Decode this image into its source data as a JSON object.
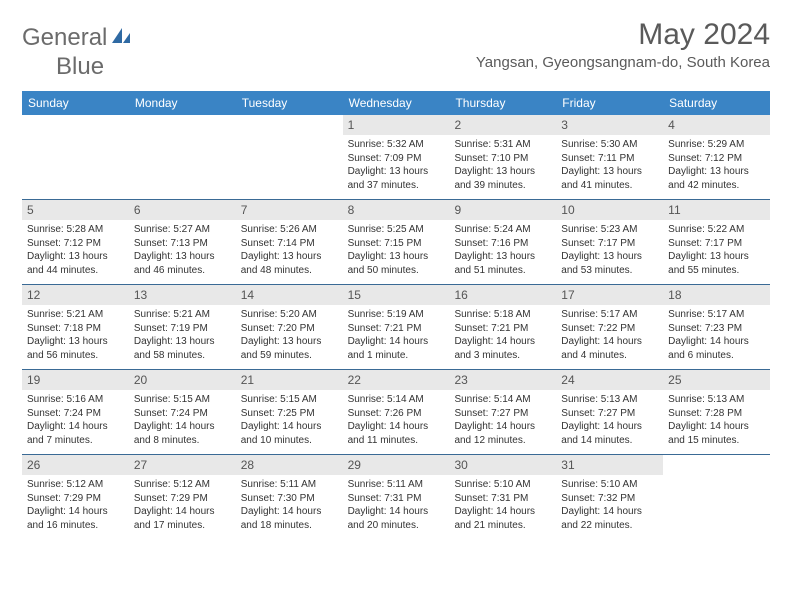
{
  "logo": {
    "text1": "General",
    "text2": "Blue"
  },
  "title": "May 2024",
  "location": "Yangsan, Gyeongsangnam-do, South Korea",
  "colors": {
    "header_bg": "#3a84c5",
    "header_text": "#ffffff",
    "daynum_bg": "#e8e8e8",
    "border": "#3a6a95",
    "logo_gray": "#6b6b6b",
    "logo_blue": "#3a7ab8",
    "title_gray": "#5a5a5a"
  },
  "day_headers": [
    "Sunday",
    "Monday",
    "Tuesday",
    "Wednesday",
    "Thursday",
    "Friday",
    "Saturday"
  ],
  "weeks": [
    [
      {
        "empty": true
      },
      {
        "empty": true
      },
      {
        "empty": true
      },
      {
        "n": "1",
        "sr": "5:32 AM",
        "ss": "7:09 PM",
        "dl": "13 hours and 37 minutes."
      },
      {
        "n": "2",
        "sr": "5:31 AM",
        "ss": "7:10 PM",
        "dl": "13 hours and 39 minutes."
      },
      {
        "n": "3",
        "sr": "5:30 AM",
        "ss": "7:11 PM",
        "dl": "13 hours and 41 minutes."
      },
      {
        "n": "4",
        "sr": "5:29 AM",
        "ss": "7:12 PM",
        "dl": "13 hours and 42 minutes."
      }
    ],
    [
      {
        "n": "5",
        "sr": "5:28 AM",
        "ss": "7:12 PM",
        "dl": "13 hours and 44 minutes."
      },
      {
        "n": "6",
        "sr": "5:27 AM",
        "ss": "7:13 PM",
        "dl": "13 hours and 46 minutes."
      },
      {
        "n": "7",
        "sr": "5:26 AM",
        "ss": "7:14 PM",
        "dl": "13 hours and 48 minutes."
      },
      {
        "n": "8",
        "sr": "5:25 AM",
        "ss": "7:15 PM",
        "dl": "13 hours and 50 minutes."
      },
      {
        "n": "9",
        "sr": "5:24 AM",
        "ss": "7:16 PM",
        "dl": "13 hours and 51 minutes."
      },
      {
        "n": "10",
        "sr": "5:23 AM",
        "ss": "7:17 PM",
        "dl": "13 hours and 53 minutes."
      },
      {
        "n": "11",
        "sr": "5:22 AM",
        "ss": "7:17 PM",
        "dl": "13 hours and 55 minutes."
      }
    ],
    [
      {
        "n": "12",
        "sr": "5:21 AM",
        "ss": "7:18 PM",
        "dl": "13 hours and 56 minutes."
      },
      {
        "n": "13",
        "sr": "5:21 AM",
        "ss": "7:19 PM",
        "dl": "13 hours and 58 minutes."
      },
      {
        "n": "14",
        "sr": "5:20 AM",
        "ss": "7:20 PM",
        "dl": "13 hours and 59 minutes."
      },
      {
        "n": "15",
        "sr": "5:19 AM",
        "ss": "7:21 PM",
        "dl": "14 hours and 1 minute."
      },
      {
        "n": "16",
        "sr": "5:18 AM",
        "ss": "7:21 PM",
        "dl": "14 hours and 3 minutes."
      },
      {
        "n": "17",
        "sr": "5:17 AM",
        "ss": "7:22 PM",
        "dl": "14 hours and 4 minutes."
      },
      {
        "n": "18",
        "sr": "5:17 AM",
        "ss": "7:23 PM",
        "dl": "14 hours and 6 minutes."
      }
    ],
    [
      {
        "n": "19",
        "sr": "5:16 AM",
        "ss": "7:24 PM",
        "dl": "14 hours and 7 minutes."
      },
      {
        "n": "20",
        "sr": "5:15 AM",
        "ss": "7:24 PM",
        "dl": "14 hours and 8 minutes."
      },
      {
        "n": "21",
        "sr": "5:15 AM",
        "ss": "7:25 PM",
        "dl": "14 hours and 10 minutes."
      },
      {
        "n": "22",
        "sr": "5:14 AM",
        "ss": "7:26 PM",
        "dl": "14 hours and 11 minutes."
      },
      {
        "n": "23",
        "sr": "5:14 AM",
        "ss": "7:27 PM",
        "dl": "14 hours and 12 minutes."
      },
      {
        "n": "24",
        "sr": "5:13 AM",
        "ss": "7:27 PM",
        "dl": "14 hours and 14 minutes."
      },
      {
        "n": "25",
        "sr": "5:13 AM",
        "ss": "7:28 PM",
        "dl": "14 hours and 15 minutes."
      }
    ],
    [
      {
        "n": "26",
        "sr": "5:12 AM",
        "ss": "7:29 PM",
        "dl": "14 hours and 16 minutes."
      },
      {
        "n": "27",
        "sr": "5:12 AM",
        "ss": "7:29 PM",
        "dl": "14 hours and 17 minutes."
      },
      {
        "n": "28",
        "sr": "5:11 AM",
        "ss": "7:30 PM",
        "dl": "14 hours and 18 minutes."
      },
      {
        "n": "29",
        "sr": "5:11 AM",
        "ss": "7:31 PM",
        "dl": "14 hours and 20 minutes."
      },
      {
        "n": "30",
        "sr": "5:10 AM",
        "ss": "7:31 PM",
        "dl": "14 hours and 21 minutes."
      },
      {
        "n": "31",
        "sr": "5:10 AM",
        "ss": "7:32 PM",
        "dl": "14 hours and 22 minutes."
      },
      {
        "empty": true
      }
    ]
  ],
  "labels": {
    "sunrise": "Sunrise:",
    "sunset": "Sunset:",
    "daylight": "Daylight:"
  }
}
